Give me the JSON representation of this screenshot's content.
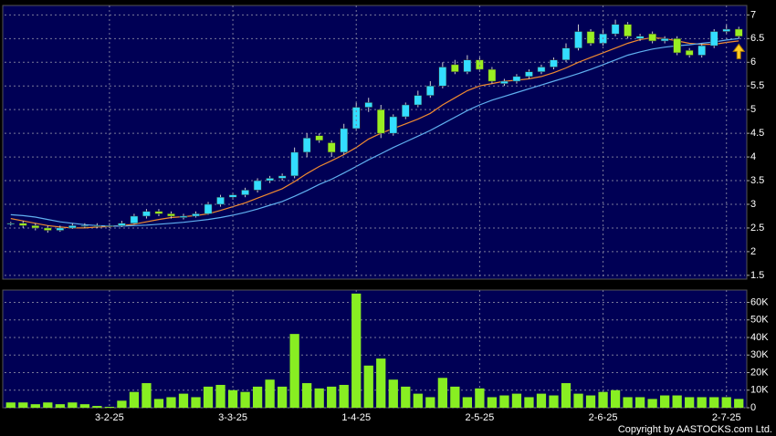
{
  "chart_data": [
    {
      "type": "candlestick",
      "up_color": "#33ddff",
      "down_color": "#99ee22",
      "grid": true,
      "open": [
        2.58,
        2.6,
        2.55,
        2.5,
        2.45,
        2.5,
        2.55,
        2.53,
        2.55,
        2.55,
        2.6,
        2.75,
        2.85,
        2.8,
        2.72,
        2.75,
        2.8,
        3.0,
        3.15,
        3.2,
        3.3,
        3.5,
        3.55,
        3.6,
        4.1,
        4.45,
        4.3,
        4.1,
        4.6,
        5.05,
        5.0,
        4.5,
        4.85,
        5.1,
        5.3,
        5.5,
        5.95,
        5.8,
        6.05,
        5.85,
        5.55,
        5.6,
        5.7,
        5.8,
        5.9,
        6.05,
        6.3,
        6.65,
        6.4,
        6.6,
        6.8,
        6.5,
        6.6,
        6.45,
        6.5,
        6.25,
        6.15,
        6.35,
        6.65,
        6.7
      ],
      "high": [
        2.63,
        2.65,
        2.6,
        2.55,
        2.55,
        2.6,
        2.6,
        2.6,
        2.6,
        2.65,
        2.8,
        2.9,
        2.9,
        2.85,
        2.8,
        2.85,
        3.05,
        3.2,
        3.25,
        3.35,
        3.55,
        3.6,
        3.65,
        4.2,
        4.5,
        4.5,
        4.35,
        4.7,
        5.15,
        5.25,
        5.1,
        4.9,
        5.15,
        5.4,
        5.6,
        6.0,
        6.05,
        6.15,
        6.1,
        5.9,
        5.65,
        5.75,
        5.85,
        5.95,
        6.1,
        6.4,
        6.8,
        6.7,
        6.7,
        6.9,
        6.85,
        6.6,
        6.65,
        6.55,
        6.55,
        6.3,
        6.4,
        6.7,
        6.8,
        6.75
      ],
      "low": [
        2.55,
        2.5,
        2.45,
        2.4,
        2.42,
        2.48,
        2.5,
        2.5,
        2.5,
        2.52,
        2.58,
        2.7,
        2.75,
        2.7,
        2.68,
        2.72,
        2.78,
        2.95,
        3.1,
        3.15,
        3.25,
        3.45,
        3.5,
        3.55,
        4.0,
        4.3,
        4.0,
        4.05,
        4.55,
        4.95,
        4.4,
        4.45,
        4.8,
        5.05,
        5.25,
        5.45,
        5.75,
        5.75,
        5.8,
        5.55,
        5.5,
        5.55,
        5.65,
        5.75,
        5.85,
        6.0,
        6.25,
        6.35,
        6.35,
        6.55,
        6.5,
        6.45,
        6.4,
        6.4,
        6.15,
        6.1,
        6.1,
        6.3,
        6.6,
        6.5
      ],
      "close": [
        2.6,
        2.55,
        2.5,
        2.45,
        2.5,
        2.55,
        2.55,
        2.55,
        2.55,
        2.6,
        2.75,
        2.85,
        2.8,
        2.75,
        2.75,
        2.8,
        3.0,
        3.15,
        3.2,
        3.3,
        3.5,
        3.55,
        3.6,
        4.1,
        4.4,
        4.35,
        4.1,
        4.6,
        5.05,
        5.15,
        4.5,
        4.85,
        5.1,
        5.3,
        5.5,
        5.9,
        5.8,
        6.05,
        5.85,
        5.6,
        5.6,
        5.7,
        5.8,
        5.9,
        6.05,
        6.3,
        6.65,
        6.4,
        6.6,
        6.8,
        6.55,
        6.55,
        6.45,
        6.5,
        6.2,
        6.15,
        6.35,
        6.65,
        6.7,
        6.55
      ],
      "lines": [
        {
          "color": "#f08a30",
          "values": [
            2.7,
            2.65,
            2.6,
            2.55,
            2.52,
            2.5,
            2.5,
            2.52,
            2.53,
            2.55,
            2.58,
            2.63,
            2.68,
            2.72,
            2.74,
            2.76,
            2.8,
            2.87,
            2.95,
            3.03,
            3.13,
            3.23,
            3.33,
            3.48,
            3.65,
            3.8,
            3.92,
            4.05,
            4.2,
            4.38,
            4.5,
            4.6,
            4.7,
            4.8,
            4.92,
            5.1,
            5.25,
            5.4,
            5.5,
            5.55,
            5.6,
            5.62,
            5.65,
            5.7,
            5.78,
            5.88,
            6.0,
            6.1,
            6.2,
            6.3,
            6.4,
            6.48,
            6.52,
            6.5,
            6.45,
            6.4,
            6.38,
            6.38,
            6.42,
            6.45
          ]
        },
        {
          "color": "#60b0f0",
          "values": [
            2.78,
            2.76,
            2.73,
            2.68,
            2.63,
            2.6,
            2.57,
            2.55,
            2.54,
            2.54,
            2.55,
            2.56,
            2.58,
            2.6,
            2.62,
            2.65,
            2.68,
            2.72,
            2.77,
            2.83,
            2.9,
            2.98,
            3.06,
            3.17,
            3.29,
            3.42,
            3.53,
            3.66,
            3.8,
            3.94,
            4.07,
            4.2,
            4.32,
            4.44,
            4.56,
            4.7,
            4.84,
            4.98,
            5.1,
            5.2,
            5.28,
            5.36,
            5.44,
            5.52,
            5.6,
            5.68,
            5.76,
            5.85,
            5.95,
            6.05,
            6.15,
            6.22,
            6.28,
            6.32,
            6.35,
            6.37,
            6.4,
            6.43,
            6.47,
            6.5
          ]
        }
      ],
      "ylim": [
        1.42,
        7.2
      ],
      "yticks": [
        1.5,
        2,
        2.5,
        3,
        3.5,
        4,
        4.5,
        5,
        5.5,
        6,
        6.5,
        7
      ]
    },
    {
      "type": "bar",
      "color": "#88ee22",
      "grid": true,
      "categories": [
        null,
        null,
        null,
        null,
        null,
        null,
        null,
        null,
        "3-2-25",
        null,
        null,
        null,
        null,
        null,
        null,
        null,
        null,
        null,
        "3-3-25",
        null,
        null,
        null,
        null,
        null,
        null,
        null,
        null,
        null,
        "1-4-25",
        null,
        null,
        null,
        null,
        null,
        null,
        null,
        null,
        null,
        "2-5-25",
        null,
        null,
        null,
        null,
        null,
        null,
        null,
        null,
        null,
        "2-6-25",
        null,
        null,
        null,
        null,
        null,
        null,
        null,
        null,
        null,
        "2-7-25",
        null
      ],
      "values": [
        3000,
        3000,
        2000,
        3000,
        2000,
        3000,
        2000,
        1000,
        500,
        4000,
        9000,
        14000,
        5000,
        6000,
        8000,
        6000,
        12000,
        13000,
        10000,
        9000,
        12000,
        16000,
        12000,
        42000,
        14000,
        11000,
        12000,
        13000,
        65000,
        24000,
        28000,
        16000,
        12000,
        8000,
        6000,
        17000,
        12000,
        6000,
        11000,
        6000,
        7000,
        8000,
        6000,
        8000,
        7000,
        14000,
        8000,
        7000,
        9000,
        10000,
        6000,
        6000,
        5000,
        7000,
        7000,
        6000,
        6000,
        6000,
        6000,
        5000
      ],
      "ylim": [
        0,
        67000
      ],
      "yticks": [
        0,
        {
          "value": 10000,
          "label": "10K"
        },
        {
          "value": 20000,
          "label": "20K"
        },
        {
          "value": 30000,
          "label": "30K"
        },
        {
          "value": 40000,
          "label": "40K"
        },
        {
          "value": 50000,
          "label": "50K"
        },
        {
          "value": 60000,
          "label": "60K"
        }
      ]
    }
  ],
  "copyright": "Copyright by AASTOCKS.com Ltd."
}
